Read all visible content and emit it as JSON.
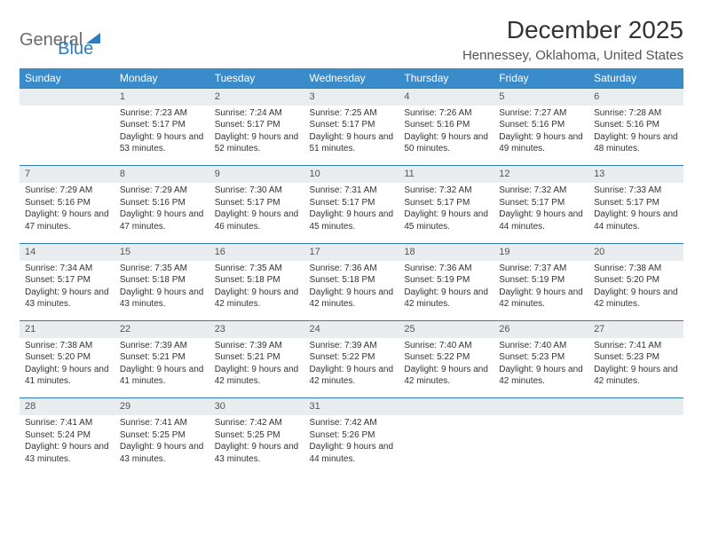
{
  "logo": {
    "part1": "General",
    "part2": "Blue"
  },
  "title": "December 2025",
  "location": "Hennessey, Oklahoma, United States",
  "colors": {
    "header_bg": "#3a8bc9",
    "header_text": "#ffffff",
    "daynum_bg": "#e9edf0",
    "daynum_border": "#2f7bbf",
    "logo_gray": "#6b6b6b",
    "logo_blue": "#2f7bbf"
  },
  "fonts": {
    "title_size": 28,
    "location_size": 15,
    "th_size": 12,
    "cell_size": 10
  },
  "weekdays": [
    "Sunday",
    "Monday",
    "Tuesday",
    "Wednesday",
    "Thursday",
    "Friday",
    "Saturday"
  ],
  "weeks": [
    {
      "nums": [
        "",
        "1",
        "2",
        "3",
        "4",
        "5",
        "6"
      ],
      "details": [
        {
          "sunrise": "",
          "sunset": "",
          "daylight": ""
        },
        {
          "sunrise": "Sunrise: 7:23 AM",
          "sunset": "Sunset: 5:17 PM",
          "daylight": "Daylight: 9 hours and 53 minutes."
        },
        {
          "sunrise": "Sunrise: 7:24 AM",
          "sunset": "Sunset: 5:17 PM",
          "daylight": "Daylight: 9 hours and 52 minutes."
        },
        {
          "sunrise": "Sunrise: 7:25 AM",
          "sunset": "Sunset: 5:17 PM",
          "daylight": "Daylight: 9 hours and 51 minutes."
        },
        {
          "sunrise": "Sunrise: 7:26 AM",
          "sunset": "Sunset: 5:16 PM",
          "daylight": "Daylight: 9 hours and 50 minutes."
        },
        {
          "sunrise": "Sunrise: 7:27 AM",
          "sunset": "Sunset: 5:16 PM",
          "daylight": "Daylight: 9 hours and 49 minutes."
        },
        {
          "sunrise": "Sunrise: 7:28 AM",
          "sunset": "Sunset: 5:16 PM",
          "daylight": "Daylight: 9 hours and 48 minutes."
        }
      ]
    },
    {
      "nums": [
        "7",
        "8",
        "9",
        "10",
        "11",
        "12",
        "13"
      ],
      "details": [
        {
          "sunrise": "Sunrise: 7:29 AM",
          "sunset": "Sunset: 5:16 PM",
          "daylight": "Daylight: 9 hours and 47 minutes."
        },
        {
          "sunrise": "Sunrise: 7:29 AM",
          "sunset": "Sunset: 5:16 PM",
          "daylight": "Daylight: 9 hours and 47 minutes."
        },
        {
          "sunrise": "Sunrise: 7:30 AM",
          "sunset": "Sunset: 5:17 PM",
          "daylight": "Daylight: 9 hours and 46 minutes."
        },
        {
          "sunrise": "Sunrise: 7:31 AM",
          "sunset": "Sunset: 5:17 PM",
          "daylight": "Daylight: 9 hours and 45 minutes."
        },
        {
          "sunrise": "Sunrise: 7:32 AM",
          "sunset": "Sunset: 5:17 PM",
          "daylight": "Daylight: 9 hours and 45 minutes."
        },
        {
          "sunrise": "Sunrise: 7:32 AM",
          "sunset": "Sunset: 5:17 PM",
          "daylight": "Daylight: 9 hours and 44 minutes."
        },
        {
          "sunrise": "Sunrise: 7:33 AM",
          "sunset": "Sunset: 5:17 PM",
          "daylight": "Daylight: 9 hours and 44 minutes."
        }
      ]
    },
    {
      "nums": [
        "14",
        "15",
        "16",
        "17",
        "18",
        "19",
        "20"
      ],
      "details": [
        {
          "sunrise": "Sunrise: 7:34 AM",
          "sunset": "Sunset: 5:17 PM",
          "daylight": "Daylight: 9 hours and 43 minutes."
        },
        {
          "sunrise": "Sunrise: 7:35 AM",
          "sunset": "Sunset: 5:18 PM",
          "daylight": "Daylight: 9 hours and 43 minutes."
        },
        {
          "sunrise": "Sunrise: 7:35 AM",
          "sunset": "Sunset: 5:18 PM",
          "daylight": "Daylight: 9 hours and 42 minutes."
        },
        {
          "sunrise": "Sunrise: 7:36 AM",
          "sunset": "Sunset: 5:18 PM",
          "daylight": "Daylight: 9 hours and 42 minutes."
        },
        {
          "sunrise": "Sunrise: 7:36 AM",
          "sunset": "Sunset: 5:19 PM",
          "daylight": "Daylight: 9 hours and 42 minutes."
        },
        {
          "sunrise": "Sunrise: 7:37 AM",
          "sunset": "Sunset: 5:19 PM",
          "daylight": "Daylight: 9 hours and 42 minutes."
        },
        {
          "sunrise": "Sunrise: 7:38 AM",
          "sunset": "Sunset: 5:20 PM",
          "daylight": "Daylight: 9 hours and 42 minutes."
        }
      ]
    },
    {
      "nums": [
        "21",
        "22",
        "23",
        "24",
        "25",
        "26",
        "27"
      ],
      "details": [
        {
          "sunrise": "Sunrise: 7:38 AM",
          "sunset": "Sunset: 5:20 PM",
          "daylight": "Daylight: 9 hours and 41 minutes."
        },
        {
          "sunrise": "Sunrise: 7:39 AM",
          "sunset": "Sunset: 5:21 PM",
          "daylight": "Daylight: 9 hours and 41 minutes."
        },
        {
          "sunrise": "Sunrise: 7:39 AM",
          "sunset": "Sunset: 5:21 PM",
          "daylight": "Daylight: 9 hours and 42 minutes."
        },
        {
          "sunrise": "Sunrise: 7:39 AM",
          "sunset": "Sunset: 5:22 PM",
          "daylight": "Daylight: 9 hours and 42 minutes."
        },
        {
          "sunrise": "Sunrise: 7:40 AM",
          "sunset": "Sunset: 5:22 PM",
          "daylight": "Daylight: 9 hours and 42 minutes."
        },
        {
          "sunrise": "Sunrise: 7:40 AM",
          "sunset": "Sunset: 5:23 PM",
          "daylight": "Daylight: 9 hours and 42 minutes."
        },
        {
          "sunrise": "Sunrise: 7:41 AM",
          "sunset": "Sunset: 5:23 PM",
          "daylight": "Daylight: 9 hours and 42 minutes."
        }
      ]
    },
    {
      "nums": [
        "28",
        "29",
        "30",
        "31",
        "",
        "",
        ""
      ],
      "details": [
        {
          "sunrise": "Sunrise: 7:41 AM",
          "sunset": "Sunset: 5:24 PM",
          "daylight": "Daylight: 9 hours and 43 minutes."
        },
        {
          "sunrise": "Sunrise: 7:41 AM",
          "sunset": "Sunset: 5:25 PM",
          "daylight": "Daylight: 9 hours and 43 minutes."
        },
        {
          "sunrise": "Sunrise: 7:42 AM",
          "sunset": "Sunset: 5:25 PM",
          "daylight": "Daylight: 9 hours and 43 minutes."
        },
        {
          "sunrise": "Sunrise: 7:42 AM",
          "sunset": "Sunset: 5:26 PM",
          "daylight": "Daylight: 9 hours and 44 minutes."
        },
        {
          "sunrise": "",
          "sunset": "",
          "daylight": ""
        },
        {
          "sunrise": "",
          "sunset": "",
          "daylight": ""
        },
        {
          "sunrise": "",
          "sunset": "",
          "daylight": ""
        }
      ]
    }
  ]
}
